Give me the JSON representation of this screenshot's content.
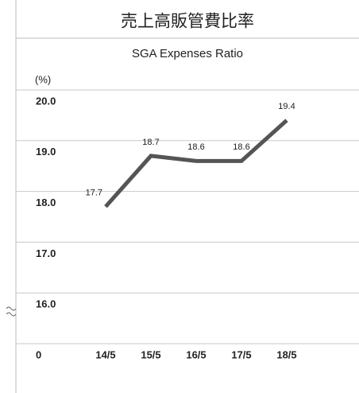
{
  "chart_data": {
    "type": "line",
    "title": "売上高販管費比率",
    "subtitle": "SGA Expenses Ratio",
    "y_label": "(%)",
    "categories": [
      "14/5",
      "15/5",
      "16/5",
      "17/5",
      "18/5"
    ],
    "series": [
      {
        "color": "#555555",
        "values": [
          17.7,
          18.7,
          18.6,
          18.6,
          19.4
        ]
      }
    ],
    "ylim": [
      0,
      20
    ],
    "axis_break": [
      0,
      16
    ],
    "yticks": [
      0,
      {
        "value": 16,
        "label": "16.0"
      },
      {
        "value": 17,
        "label": "17.0"
      },
      {
        "value": 18,
        "label": "18.0"
      },
      {
        "value": 19,
        "label": "19.0"
      },
      {
        "value": 20,
        "label": "20.0"
      }
    ],
    "grid": true
  }
}
